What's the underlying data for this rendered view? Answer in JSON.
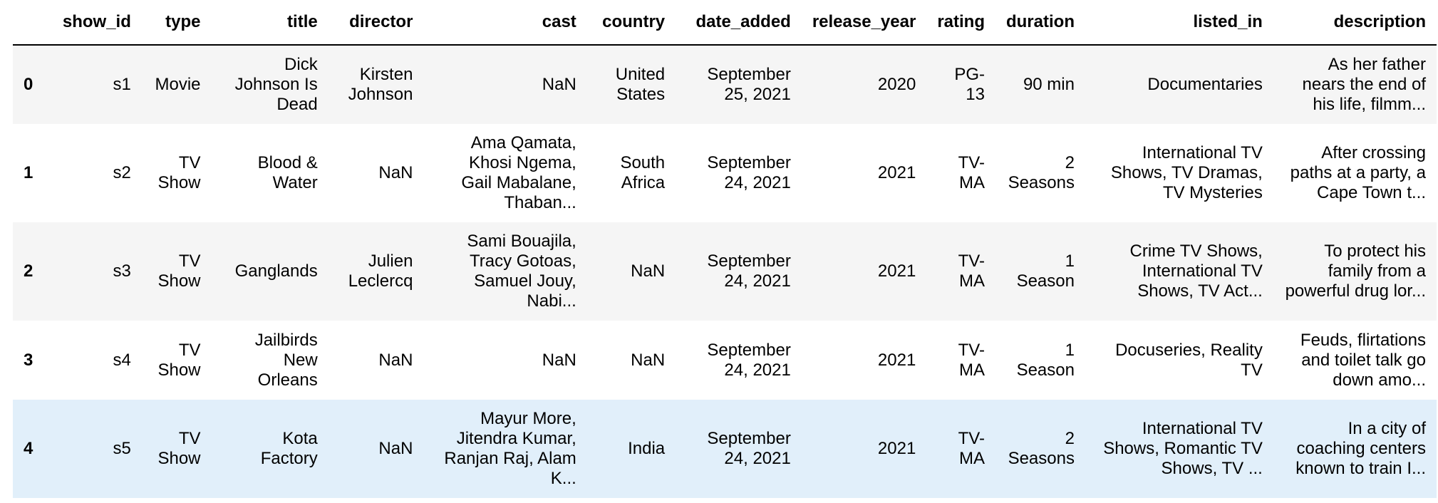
{
  "columns": [
    "show_id",
    "type",
    "title",
    "director",
    "cast",
    "country",
    "date_added",
    "release_year",
    "rating",
    "duration",
    "listed_in",
    "description"
  ],
  "rows": [
    {
      "index": "0",
      "cells": [
        "s1",
        "Movie",
        "Dick Johnson Is Dead",
        "Kirsten Johnson",
        "NaN",
        "United States",
        "September 25, 2021",
        "2020",
        "PG-13",
        "90 min",
        "Documentaries",
        "As her father nears the end of his life, filmm..."
      ]
    },
    {
      "index": "1",
      "cells": [
        "s2",
        "TV Show",
        "Blood & Water",
        "NaN",
        "Ama Qamata, Khosi Ngema, Gail Mabalane, Thaban...",
        "South Africa",
        "September 24, 2021",
        "2021",
        "TV-MA",
        "2 Seasons",
        "International TV Shows, TV Dramas, TV Mysteries",
        "After crossing paths at a party, a Cape Town t..."
      ]
    },
    {
      "index": "2",
      "cells": [
        "s3",
        "TV Show",
        "Ganglands",
        "Julien Leclercq",
        "Sami Bouajila, Tracy Gotoas, Samuel Jouy, Nabi...",
        "NaN",
        "September 24, 2021",
        "2021",
        "TV-MA",
        "1 Season",
        "Crime TV Shows, International TV Shows, TV Act...",
        "To protect his family from a powerful drug lor..."
      ]
    },
    {
      "index": "3",
      "cells": [
        "s4",
        "TV Show",
        "Jailbirds New Orleans",
        "NaN",
        "NaN",
        "NaN",
        "September 24, 2021",
        "2021",
        "TV-MA",
        "1 Season",
        "Docuseries, Reality TV",
        "Feuds, flirtations and toilet talk go down amo..."
      ]
    },
    {
      "index": "4",
      "cells": [
        "s5",
        "TV Show",
        "Kota Factory",
        "NaN",
        "Mayur More, Jitendra Kumar, Ranjan Raj, Alam K...",
        "India",
        "September 24, 2021",
        "2021",
        "TV-MA",
        "2 Seasons",
        "International TV Shows, Romantic TV Shows, TV ...",
        "In a city of coaching centers known to train I..."
      ]
    }
  ]
}
